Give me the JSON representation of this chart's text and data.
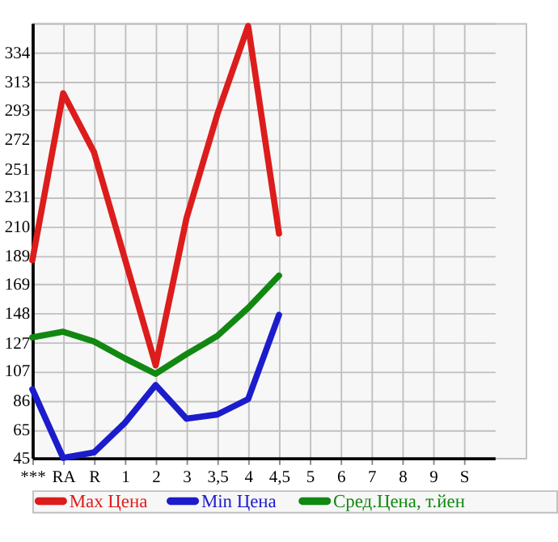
{
  "chart_data": {
    "type": "line",
    "categories": [
      "***",
      "RA",
      "R",
      "1",
      "2",
      "3",
      "3,5",
      "4",
      "4,5",
      "5",
      "6",
      "7",
      "8",
      "9",
      "S"
    ],
    "series": [
      {
        "name": "Max Цена",
        "color": "#dd1c1c",
        "values": [
          186,
          305,
          263,
          187,
          111,
          216,
          290,
          353,
          205,
          null,
          null,
          null,
          null,
          null,
          null
        ]
      },
      {
        "name": "Min Цена",
        "color": "#1c1ccc",
        "values": [
          94,
          45,
          49,
          70,
          97,
          73,
          76,
          87,
          147,
          null,
          null,
          null,
          null,
          null,
          null
        ]
      },
      {
        "name": "Сред.Цена, т.йен",
        "color": "#118811",
        "values": [
          131,
          135,
          128,
          116,
          105,
          119,
          132,
          152,
          175,
          null,
          null,
          null,
          null,
          null,
          null
        ]
      }
    ],
    "ylim": [
      45,
      355
    ],
    "yticks": [
      45,
      65,
      86,
      107,
      127,
      148,
      169,
      189,
      210,
      231,
      251,
      272,
      293,
      313,
      334,
      {
        "value": 355,
        "label": null
      }
    ],
    "grid": true,
    "legend": "bottom",
    "line_style": "solid",
    "marker": "none"
  }
}
